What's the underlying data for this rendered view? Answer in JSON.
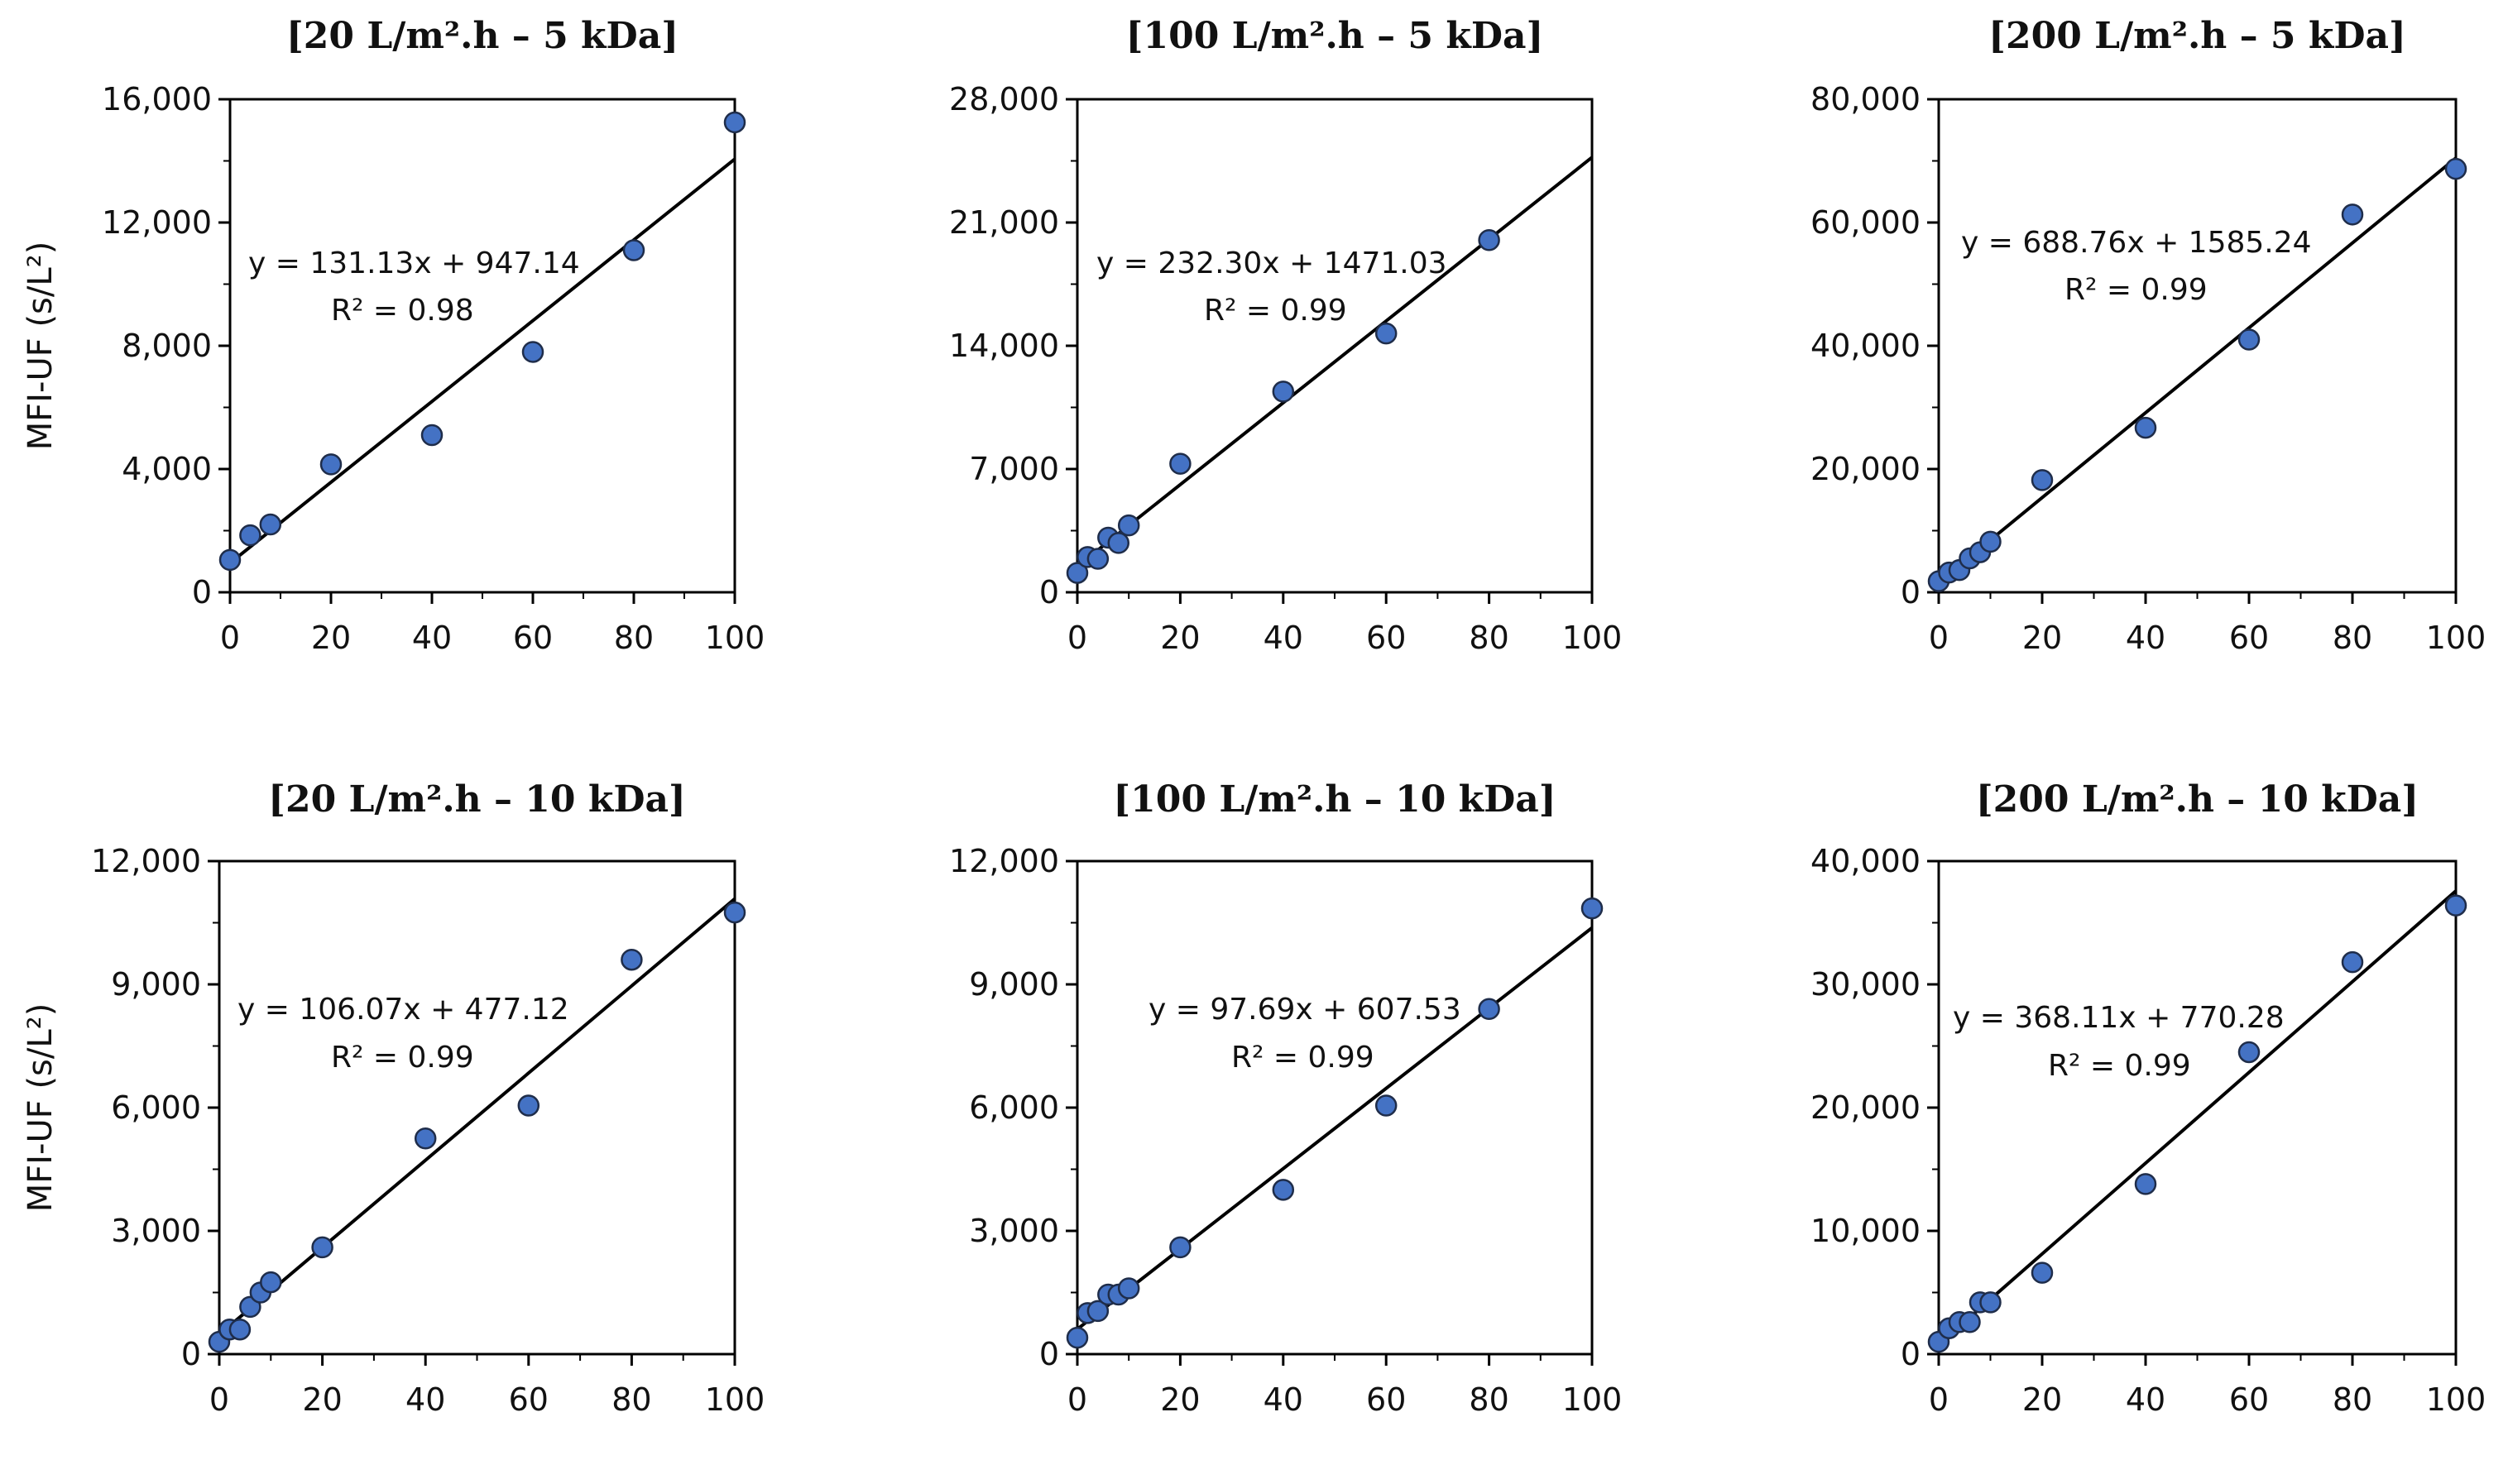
{
  "chart_data": [
    {
      "type": "scatter",
      "title": "[20 L/m².h – 5 kDa]",
      "xlabel": "",
      "ylabel": "MFI-UF (s/L²)",
      "xlim": [
        0,
        100
      ],
      "ylim": [
        0,
        16000
      ],
      "xticks": [
        "0",
        "20",
        "40",
        "60",
        "80",
        "100"
      ],
      "yticks": [
        "0",
        "4,000",
        "8,000",
        "12,000",
        "16,000"
      ],
      "points": [
        [
          0,
          1050
        ],
        [
          4,
          1850
        ],
        [
          8,
          2200
        ],
        [
          20,
          4150
        ],
        [
          40,
          5100
        ],
        [
          60,
          7800
        ],
        [
          80,
          11100
        ],
        [
          100,
          15250
        ]
      ],
      "fit": {
        "slope": 131.13,
        "intercept": 947.14
      },
      "equation": "y = 131.13x + 947.14",
      "r2": "R² = 0.98"
    },
    {
      "type": "scatter",
      "title": "[100 L/m².h – 5 kDa]",
      "xlabel": "",
      "ylabel": "",
      "xlim": [
        0,
        100
      ],
      "ylim": [
        0,
        28000
      ],
      "xticks": [
        "0",
        "20",
        "40",
        "60",
        "80",
        "100"
      ],
      "yticks": [
        "0",
        "7,000",
        "14,000",
        "21,000",
        "28,000"
      ],
      "points": [
        [
          0,
          1100
        ],
        [
          2,
          2000
        ],
        [
          4,
          1900
        ],
        [
          6,
          3100
        ],
        [
          8,
          2800
        ],
        [
          10,
          3800
        ],
        [
          20,
          7300
        ],
        [
          40,
          11400
        ],
        [
          60,
          14700
        ],
        [
          80,
          20000
        ]
      ],
      "fit": {
        "slope": 232.3,
        "intercept": 1471.03
      },
      "equation": "y = 232.30x + 1471.03",
      "r2": "R² = 0.99"
    },
    {
      "type": "scatter",
      "title": "[200 L/m².h – 5 kDa]",
      "xlabel": "",
      "ylabel": "",
      "xlim": [
        0,
        100
      ],
      "ylim": [
        0,
        80000
      ],
      "xticks": [
        "0",
        "20",
        "40",
        "60",
        "80",
        "100"
      ],
      "yticks": [
        "0",
        "20,000",
        "40,000",
        "60,000",
        "80,000"
      ],
      "points": [
        [
          0,
          1800
        ],
        [
          2,
          3200
        ],
        [
          4,
          3600
        ],
        [
          6,
          5500
        ],
        [
          8,
          6500
        ],
        [
          10,
          8200
        ],
        [
          20,
          18200
        ],
        [
          40,
          26700
        ],
        [
          60,
          41000
        ],
        [
          80,
          61300
        ],
        [
          100,
          68700
        ]
      ],
      "fit": {
        "slope": 688.76,
        "intercept": 1585.24
      },
      "equation": "y = 688.76x + 1585.24",
      "r2": "R² = 0.99"
    },
    {
      "type": "scatter",
      "title": "[20 L/m².h – 10 kDa]",
      "xlabel": "",
      "ylabel": "MFI-UF (s/L²)",
      "xlim": [
        0,
        100
      ],
      "ylim": [
        0,
        12000
      ],
      "xticks": [
        "0",
        "20",
        "40",
        "60",
        "80",
        "100"
      ],
      "yticks": [
        "0",
        "3,000",
        "6,000",
        "9,000",
        "12,000"
      ],
      "points": [
        [
          0,
          300
        ],
        [
          2,
          600
        ],
        [
          4,
          600
        ],
        [
          6,
          1150
        ],
        [
          8,
          1500
        ],
        [
          10,
          1750
        ],
        [
          20,
          2600
        ],
        [
          40,
          5250
        ],
        [
          60,
          6050
        ],
        [
          80,
          9600
        ],
        [
          100,
          10750
        ]
      ],
      "fit": {
        "slope": 106.07,
        "intercept": 477.12
      },
      "equation": "y = 106.07x + 477.12",
      "r2": "R² = 0.99"
    },
    {
      "type": "scatter",
      "title": "[100 L/m².h – 10 kDa]",
      "xlabel": "",
      "ylabel": "",
      "xlim": [
        0,
        100
      ],
      "ylim": [
        0,
        12000
      ],
      "xticks": [
        "0",
        "20",
        "40",
        "60",
        "80",
        "100"
      ],
      "yticks": [
        "0",
        "3,000",
        "6,000",
        "9,000",
        "12,000"
      ],
      "points": [
        [
          0,
          400
        ],
        [
          2,
          1000
        ],
        [
          4,
          1050
        ],
        [
          6,
          1450
        ],
        [
          8,
          1450
        ],
        [
          10,
          1600
        ],
        [
          20,
          2600
        ],
        [
          40,
          4000
        ],
        [
          60,
          6050
        ],
        [
          80,
          8400
        ],
        [
          100,
          10850
        ]
      ],
      "fit": {
        "slope": 97.69,
        "intercept": 607.53
      },
      "equation": "y = 97.69x + 607.53",
      "r2": "R² = 0.99"
    },
    {
      "type": "scatter",
      "title": "[200 L/m².h – 10 kDa]",
      "xlabel": "",
      "ylabel": "",
      "xlim": [
        0,
        100
      ],
      "ylim": [
        0,
        40000
      ],
      "xticks": [
        "0",
        "20",
        "40",
        "60",
        "80",
        "100"
      ],
      "yticks": [
        "0",
        "10,000",
        "20,000",
        "30,000",
        "40,000"
      ],
      "points": [
        [
          0,
          1000
        ],
        [
          2,
          2100
        ],
        [
          4,
          2600
        ],
        [
          6,
          2600
        ],
        [
          8,
          4200
        ],
        [
          10,
          4200
        ],
        [
          20,
          6600
        ],
        [
          40,
          13800
        ],
        [
          60,
          24500
        ],
        [
          80,
          31800
        ],
        [
          100,
          36400
        ]
      ],
      "fit": {
        "slope": 368.11,
        "intercept": 770.28
      },
      "equation": "y = 368.11x + 770.28",
      "r2": "R² = 0.99"
    }
  ],
  "colors": {
    "marker_fill": "#4472C4",
    "marker_stroke": "#1F2D4A",
    "line": "#000000",
    "axis": "#000000",
    "text": "#111111"
  }
}
